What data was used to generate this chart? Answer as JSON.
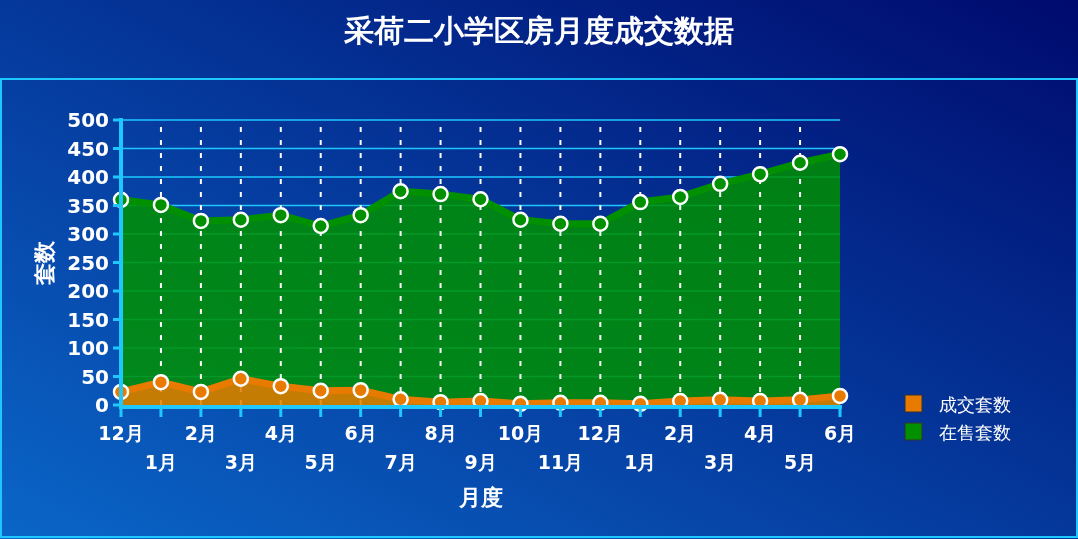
{
  "chart_data": {
    "type": "area",
    "title": "采荷二小学区房月度成交数据",
    "xlabel": "月度",
    "ylabel": "套数",
    "categories": [
      "12月",
      "1月",
      "2月",
      "3月",
      "4月",
      "5月",
      "6月",
      "7月",
      "8月",
      "9月",
      "10月",
      "11月",
      "12月",
      "1月",
      "2月",
      "3月",
      "4月",
      "5月",
      "6月"
    ],
    "series": [
      {
        "name": "成交套数",
        "color": "#e87a00",
        "values": [
          23,
          40,
          23,
          46,
          33,
          25,
          26,
          10,
          5,
          7,
          2,
          4,
          4,
          2,
          7,
          9,
          7,
          9,
          16
        ]
      },
      {
        "name": "在售套数",
        "color": "#009000",
        "values": [
          360,
          351,
          323,
          325,
          333,
          314,
          333,
          375,
          370,
          361,
          325,
          318,
          318,
          356,
          365,
          388,
          405,
          425,
          440
        ]
      }
    ],
    "ylim": [
      0,
      500
    ],
    "yticks": [
      0,
      50,
      100,
      150,
      200,
      250,
      300,
      350,
      400,
      450,
      500
    ],
    "grid": true,
    "legend": "right",
    "marker": "circle"
  }
}
